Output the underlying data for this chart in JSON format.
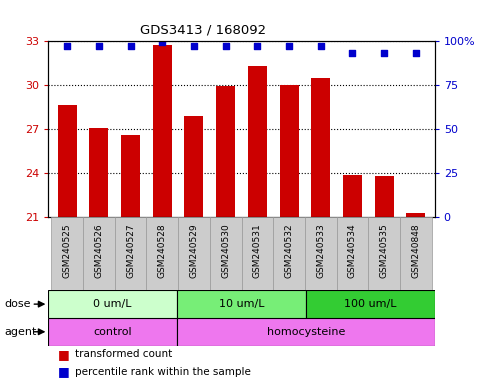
{
  "title": "GDS3413 / 168092",
  "samples": [
    "GSM240525",
    "GSM240526",
    "GSM240527",
    "GSM240528",
    "GSM240529",
    "GSM240530",
    "GSM240531",
    "GSM240532",
    "GSM240533",
    "GSM240534",
    "GSM240535",
    "GSM240848"
  ],
  "bar_values": [
    28.6,
    27.1,
    26.6,
    32.7,
    27.9,
    29.9,
    31.3,
    30.0,
    30.5,
    23.9,
    23.8,
    21.3
  ],
  "percentile_values": [
    97,
    97,
    97,
    99,
    97,
    97,
    97,
    97,
    97,
    93,
    93,
    93
  ],
  "bar_color": "#cc0000",
  "dot_color": "#0000cc",
  "ylim": [
    21,
    33
  ],
  "yticks": [
    21,
    24,
    27,
    30,
    33
  ],
  "y2lim": [
    0,
    100
  ],
  "y2ticks": [
    0,
    25,
    50,
    75,
    100
  ],
  "dose_groups": [
    {
      "label": "0 um/L",
      "start": 0,
      "end": 4,
      "color": "#ccffcc"
    },
    {
      "label": "10 um/L",
      "start": 4,
      "end": 8,
      "color": "#77ee77"
    },
    {
      "label": "100 um/L",
      "start": 8,
      "end": 12,
      "color": "#33cc33"
    }
  ],
  "agent_groups": [
    {
      "label": "control",
      "start": 0,
      "end": 4,
      "color": "#ee77ee"
    },
    {
      "label": "homocysteine",
      "start": 4,
      "end": 12,
      "color": "#ee77ee"
    }
  ],
  "dose_label": "dose",
  "agent_label": "agent",
  "legend_bar_label": "transformed count",
  "legend_dot_label": "percentile rank within the sample",
  "tick_color_left": "#cc0000",
  "tick_color_right": "#0000cc",
  "bg_color": "#ffffff",
  "plot_bg_color": "#ffffff",
  "xtick_bg_color": "#cccccc",
  "xtick_box_color": "#999999"
}
